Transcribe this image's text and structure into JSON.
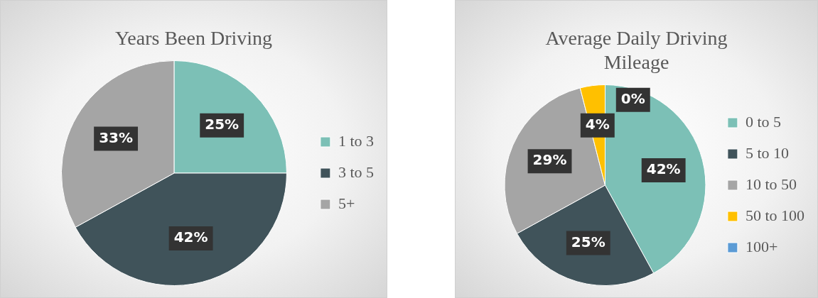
{
  "chart_data": [
    {
      "type": "pie",
      "title": "Years Been Driving",
      "categories": [
        "1 to 3",
        "3 to 5",
        "5+"
      ],
      "values": [
        25,
        42,
        33
      ],
      "colors": [
        "#7cc0b6",
        "#40535a",
        "#a5a5a5"
      ],
      "value_labels": [
        "25%",
        "42%",
        "33%"
      ],
      "legend": "right"
    },
    {
      "type": "pie",
      "title": "Average Daily Driving Mileage",
      "categories": [
        "0 to 5",
        "5 to 10",
        "10 to 50",
        "50 to 100",
        "100+"
      ],
      "values": [
        42,
        25,
        29,
        4,
        0
      ],
      "colors": [
        "#7cc0b6",
        "#40535a",
        "#a5a5a5",
        "#ffc000",
        "#5b9bd5"
      ],
      "value_labels": [
        "42%",
        "25%",
        "29%",
        "4%",
        "0%"
      ],
      "legend": "right"
    }
  ]
}
